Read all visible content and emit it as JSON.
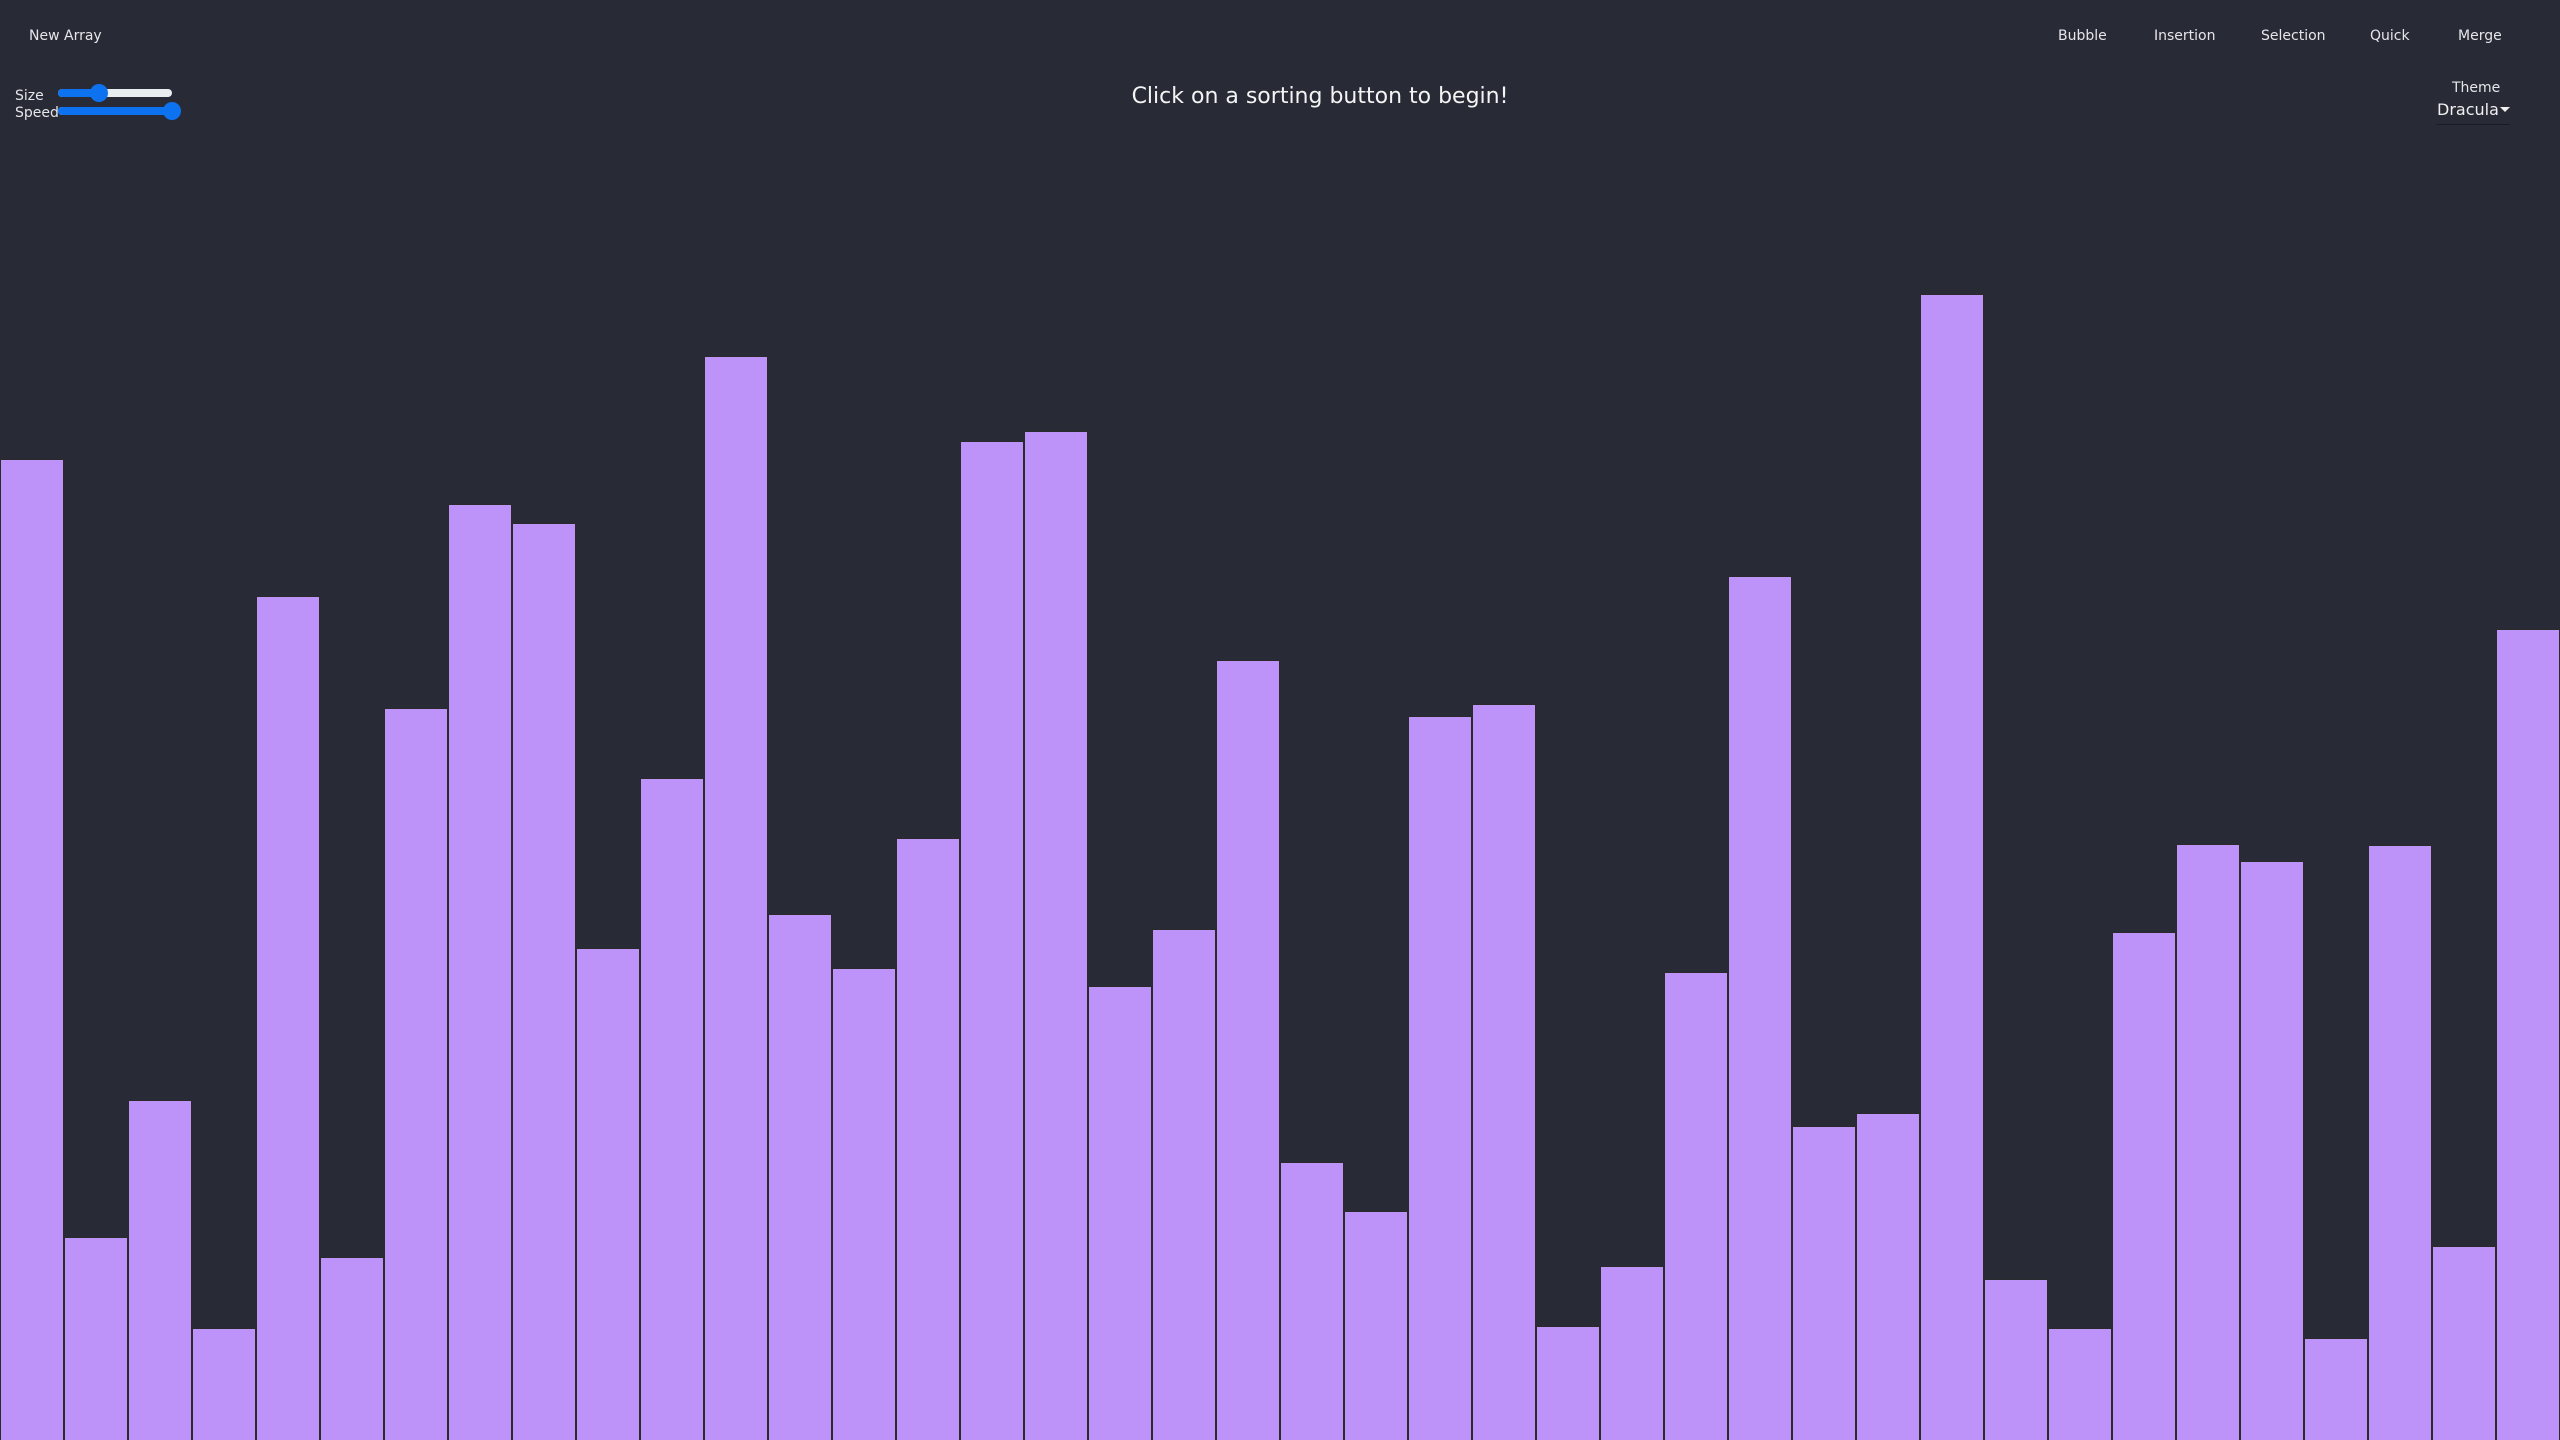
{
  "toolbar": {
    "new_array": "New Array",
    "algorithms": [
      "Bubble",
      "Insertion",
      "Selection",
      "Quick",
      "Merge"
    ]
  },
  "controls": {
    "size_label": "Size",
    "size_value_percent": 36,
    "speed_label": "Speed",
    "speed_value_percent": 100
  },
  "message": "Click on a sorting button to begin!",
  "theme": {
    "label": "Theme",
    "selected": "Dracula"
  },
  "colors": {
    "background": "#282a36",
    "bar": "#bd93f9",
    "slider": "#0d72f0"
  },
  "array": {
    "unit": "percent of max height",
    "values": [
      68.1,
      14.1,
      23.6,
      7.8,
      58.6,
      12.7,
      50.8,
      65.0,
      63.7,
      34.2,
      46.0,
      75.3,
      36.5,
      32.8,
      41.8,
      69.4,
      70.1,
      31.5,
      35.5,
      54.2,
      19.3,
      15.9,
      50.3,
      51.1,
      7.9,
      12.1,
      32.5,
      60.0,
      21.8,
      22.7,
      79.6,
      11.2,
      7.8,
      35.3,
      41.4,
      40.2,
      7.1,
      41.3,
      13.5,
      56.3
    ]
  }
}
